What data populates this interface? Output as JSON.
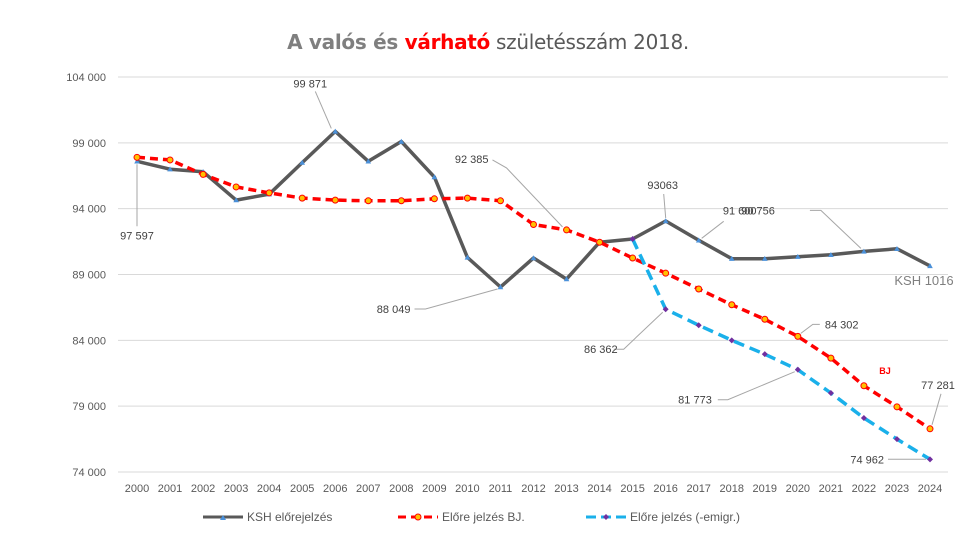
{
  "title": {
    "part1": "A valós és ",
    "part2": "várható",
    "part3": " születésszám 2018."
  },
  "chart_data": {
    "type": "line",
    "title": "A valós és várható születésszám 2018.",
    "xlabel": "",
    "ylabel": "",
    "ylim": [
      74000,
      104000
    ],
    "yticks": [
      74000,
      79000,
      84000,
      89000,
      94000,
      99000,
      104000
    ],
    "ytick_labels": [
      "74 000",
      "79 000",
      "84 000",
      "89 000",
      "94 000",
      "99 000",
      "104 000"
    ],
    "grid": true,
    "legend_position": "bottom",
    "x": [
      "2000",
      "2001",
      "2002",
      "2003",
      "2004",
      "2005",
      "2006",
      "2007",
      "2008",
      "2009",
      "2010",
      "2011",
      "2012",
      "2013",
      "2014",
      "2015",
      "2016",
      "2017",
      "2018",
      "2019",
      "2020",
      "2021",
      "2022",
      "2023",
      "2024"
    ],
    "series": [
      {
        "name": "KSH előrejelzés",
        "color": "#595959",
        "marker_color": "#4a90d9",
        "style": "solid",
        "values": [
          97597,
          97000,
          96800,
          94650,
          95100,
          97500,
          99871,
          97600,
          99100,
          96400,
          90300,
          88049,
          90250,
          88650,
          91450,
          91700,
          93063,
          91600,
          90200,
          90200,
          90350,
          90500,
          90756,
          90950,
          89650
        ]
      },
      {
        "name": "Előre jelzés BJ.",
        "color": "#ff0000",
        "marker_color": "#ffc000",
        "style": "dashed",
        "values": [
          97900,
          97700,
          96600,
          95650,
          95200,
          94800,
          94650,
          94600,
          94600,
          94750,
          94800,
          94600,
          92800,
          92385,
          91450,
          90250,
          89100,
          87900,
          86700,
          85600,
          84302,
          82650,
          80550,
          78950,
          77281
        ]
      },
      {
        "name": "Előre jelzés (-emigr.)",
        "color": "#1ab0ea",
        "marker_color": "#7030a0",
        "style": "dashed",
        "values": [
          null,
          null,
          null,
          null,
          null,
          null,
          null,
          null,
          null,
          null,
          null,
          null,
          null,
          null,
          null,
          91700,
          86362,
          85150,
          84000,
          82950,
          81773,
          80000,
          78100,
          76500,
          74962
        ]
      }
    ],
    "annotations": [
      {
        "series": 0,
        "x": "2000",
        "text": "97 597"
      },
      {
        "series": 0,
        "x": "2006",
        "text": "99 871"
      },
      {
        "series": 1,
        "x": "2013",
        "text": "92 385"
      },
      {
        "series": 0,
        "x": "2011",
        "text": "88 049"
      },
      {
        "series": 0,
        "x": "2016",
        "text": "93063"
      },
      {
        "series": 0,
        "x": "2017",
        "text": "91 600"
      },
      {
        "series": 0,
        "x": "2022",
        "text": "90 756"
      },
      {
        "series": 2,
        "x": "2016",
        "text": "86 362"
      },
      {
        "series": 1,
        "x": "2020",
        "text": "84 302"
      },
      {
        "series": 2,
        "x": "2020",
        "text": "81 773"
      },
      {
        "series": 1,
        "x": "2024",
        "text": "77 281"
      },
      {
        "series": 2,
        "x": "2024",
        "text": "74 962"
      }
    ],
    "text_notes": [
      {
        "text": "KSH 1016",
        "color": "#7f7f7f"
      },
      {
        "text": "BJ",
        "color": "#ff0000"
      }
    ]
  },
  "legend": {
    "items": [
      "KSH előrejelzés",
      "Előre jelzés BJ.",
      "Előre jelzés (-emigr.)"
    ]
  }
}
